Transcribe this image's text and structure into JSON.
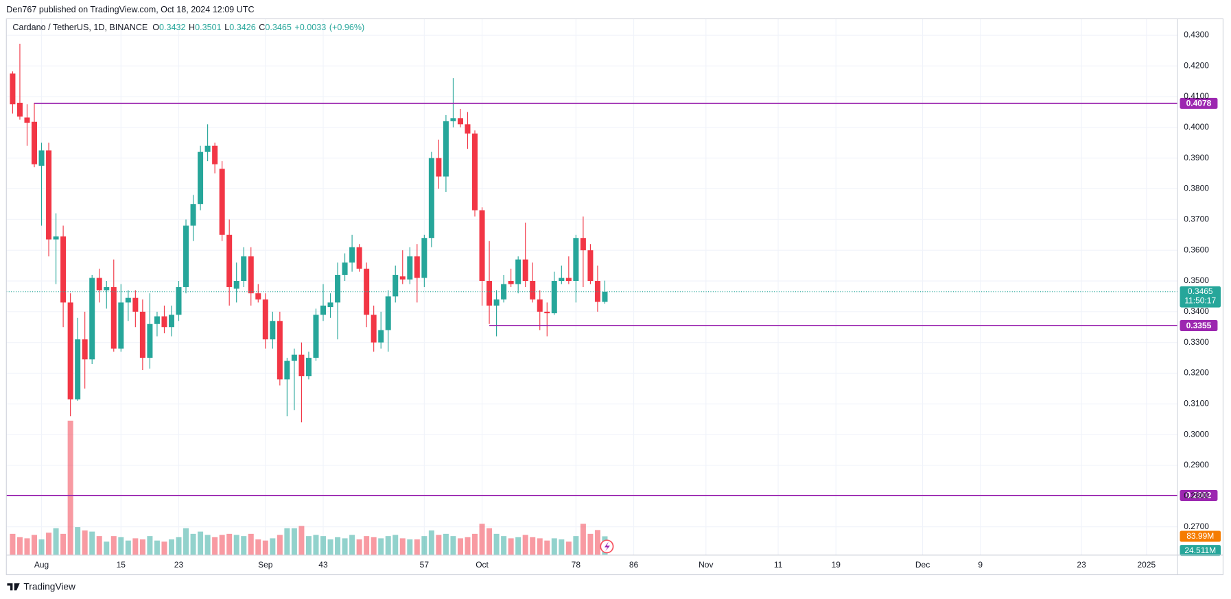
{
  "header": {
    "published": "Den767 published on TradingView.com, Oct 18, 2024 12:09 UTC"
  },
  "footer": {
    "brand": "TradingView"
  },
  "chart_data": {
    "type": "candlestick",
    "symbol": "Cardano / TetherUS, 1D, BINANCE",
    "legend_ohlc": [
      {
        "name": "O",
        "value": 0.3432
      },
      {
        "name": "H",
        "value": 0.3501
      },
      {
        "name": "L",
        "value": 0.3426
      },
      {
        "name": "C",
        "value": 0.3465
      }
    ],
    "change": "+0.0033",
    "change_pct": "(+0.96%)",
    "x": [
      0,
      1,
      2,
      3,
      4,
      5,
      6,
      7,
      8,
      9,
      10,
      11,
      12,
      13,
      14,
      15,
      16,
      17,
      18,
      19,
      20,
      21,
      22,
      23,
      24,
      25,
      26,
      27,
      28,
      29,
      30,
      31,
      32,
      33,
      34,
      35,
      36,
      37,
      38,
      39,
      40,
      41,
      42,
      43,
      44,
      45,
      46,
      47,
      48,
      49,
      50,
      51,
      52,
      53,
      54,
      55,
      56,
      57,
      58,
      59,
      60,
      61,
      62,
      63,
      64,
      65,
      66,
      67,
      68,
      69,
      70,
      71,
      72,
      73,
      74,
      75,
      76,
      77,
      78,
      79,
      80,
      81,
      82
    ],
    "open": [
      0.4175,
      0.408,
      0.4032,
      0.4018,
      0.3875,
      0.3925,
      0.3635,
      0.3645,
      0.343,
      0.3115,
      0.331,
      0.3245,
      0.351,
      0.347,
      0.348,
      0.328,
      0.343,
      0.3445,
      0.34,
      0.325,
      0.336,
      0.3385,
      0.335,
      0.339,
      0.348,
      0.368,
      0.375,
      0.392,
      0.394,
      0.3865,
      0.365,
      0.3475,
      0.35,
      0.358,
      0.346,
      0.344,
      0.331,
      0.337,
      0.318,
      0.324,
      0.326,
      0.319,
      0.325,
      0.339,
      0.3415,
      0.343,
      0.352,
      0.356,
      0.361,
      0.354,
      0.339,
      0.33,
      0.334,
      0.345,
      0.3515,
      0.3505,
      0.358,
      0.351,
      0.364,
      0.39,
      0.384,
      0.402,
      0.403,
      0.401,
      0.398,
      0.373,
      0.35,
      0.342,
      0.344,
      0.35,
      0.349,
      0.357,
      0.35,
      0.344,
      0.34,
      0.3395,
      0.35,
      0.351,
      0.35,
      0.364,
      0.36,
      0.35,
      0.3432
    ],
    "high": [
      0.4182,
      0.4272,
      0.4075,
      0.408,
      0.395,
      0.395,
      0.372,
      0.368,
      0.346,
      0.338,
      0.34,
      0.352,
      0.354,
      0.35,
      0.357,
      0.349,
      0.347,
      0.347,
      0.344,
      0.346,
      0.34,
      0.342,
      0.342,
      0.35,
      0.37,
      0.378,
      0.394,
      0.401,
      0.395,
      0.389,
      0.37,
      0.356,
      0.361,
      0.361,
      0.349,
      0.346,
      0.34,
      0.34,
      0.325,
      0.328,
      0.33,
      0.327,
      0.341,
      0.349,
      0.346,
      0.356,
      0.359,
      0.365,
      0.362,
      0.356,
      0.342,
      0.34,
      0.347,
      0.355,
      0.36,
      0.361,
      0.362,
      0.365,
      0.392,
      0.396,
      0.404,
      0.416,
      0.406,
      0.405,
      0.399,
      0.374,
      0.363,
      0.347,
      0.352,
      0.354,
      0.358,
      0.369,
      0.356,
      0.347,
      0.343,
      0.353,
      0.355,
      0.358,
      0.365,
      0.371,
      0.362,
      0.355,
      0.3501
    ],
    "low": [
      0.4045,
      0.4025,
      0.394,
      0.387,
      0.368,
      0.358,
      0.349,
      0.335,
      0.306,
      0.311,
      0.315,
      0.323,
      0.343,
      0.341,
      0.327,
      0.327,
      0.337,
      0.335,
      0.321,
      0.3215,
      0.332,
      0.333,
      0.332,
      0.337,
      0.346,
      0.363,
      0.373,
      0.389,
      0.385,
      0.363,
      0.342,
      0.343,
      0.348,
      0.342,
      0.343,
      0.328,
      0.328,
      0.316,
      0.306,
      0.308,
      0.304,
      0.318,
      0.324,
      0.337,
      0.338,
      0.331,
      0.35,
      0.353,
      0.353,
      0.335,
      0.327,
      0.328,
      0.327,
      0.343,
      0.349,
      0.349,
      0.343,
      0.348,
      0.361,
      0.38,
      0.379,
      0.4,
      0.4,
      0.393,
      0.371,
      0.342,
      0.336,
      0.332,
      0.343,
      0.348,
      0.346,
      0.348,
      0.343,
      0.334,
      0.332,
      0.339,
      0.349,
      0.349,
      0.343,
      0.348,
      0.349,
      0.34,
      0.3426
    ],
    "close": [
      0.4075,
      0.4035,
      0.4015,
      0.388,
      0.3925,
      0.3635,
      0.3645,
      0.343,
      0.3115,
      0.331,
      0.3245,
      0.351,
      0.347,
      0.348,
      0.328,
      0.343,
      0.3445,
      0.34,
      0.325,
      0.336,
      0.3385,
      0.335,
      0.339,
      0.348,
      0.368,
      0.375,
      0.392,
      0.394,
      0.388,
      0.365,
      0.348,
      0.35,
      0.358,
      0.346,
      0.344,
      0.331,
      0.337,
      0.318,
      0.324,
      0.326,
      0.319,
      0.325,
      0.339,
      0.342,
      0.343,
      0.352,
      0.356,
      0.361,
      0.354,
      0.339,
      0.33,
      0.334,
      0.345,
      0.352,
      0.3505,
      0.358,
      0.351,
      0.364,
      0.39,
      0.384,
      0.402,
      0.403,
      0.401,
      0.398,
      0.373,
      0.35,
      0.342,
      0.344,
      0.349,
      0.349,
      0.357,
      0.35,
      0.344,
      0.34,
      0.3395,
      0.35,
      0.351,
      0.35,
      0.364,
      0.36,
      0.35,
      0.3432,
      0.3465
    ],
    "volume": {
      "values": [
        95,
        80,
        75,
        90,
        70,
        100,
        120,
        95,
        600,
        125,
        110,
        105,
        85,
        60,
        85,
        80,
        65,
        75,
        70,
        85,
        65,
        60,
        70,
        80,
        120,
        95,
        105,
        90,
        80,
        90,
        95,
        90,
        85,
        95,
        70,
        65,
        75,
        90,
        120,
        120,
        130,
        85,
        90,
        85,
        70,
        80,
        75,
        90,
        70,
        85,
        80,
        75,
        85,
        90,
        75,
        70,
        70,
        85,
        110,
        90,
        95,
        85,
        75,
        80,
        95,
        140,
        120,
        95,
        85,
        75,
        80,
        90,
        80,
        75,
        65,
        75,
        70,
        60,
        85,
        140,
        95,
        112,
        83.99
      ],
      "lim": [
        0,
        2450
      ]
    },
    "xlim": [
      -0.87,
      161.3
    ],
    "xticks": [
      {
        "value": 4,
        "label": "Aug"
      },
      15,
      23,
      {
        "value": 35,
        "label": "Sep"
      },
      43,
      57,
      {
        "value": 65,
        "label": "Oct"
      },
      78,
      86,
      {
        "value": 96,
        "label": "Nov"
      },
      {
        "value": 106,
        "label": "11"
      },
      {
        "value": 114,
        "label": "19"
      },
      {
        "value": 126,
        "label": "Dec"
      },
      {
        "value": 134,
        "label": "9"
      },
      {
        "value": 148,
        "label": "23"
      },
      {
        "value": 157,
        "label": "2025"
      }
    ],
    "ylim": [
      0.2608,
      0.4394
    ],
    "yticks": [
      {
        "value": 0.27,
        "label": "0.2700"
      },
      {
        "value": 0.28,
        "label": "0.2800"
      },
      {
        "value": 0.29,
        "label": "0.2900"
      },
      {
        "value": 0.3,
        "label": "0.3000"
      },
      {
        "value": 0.31,
        "label": "0.3100"
      },
      {
        "value": 0.32,
        "label": "0.3200"
      },
      {
        "value": 0.33,
        "label": "0.3300"
      },
      {
        "value": 0.34,
        "label": "0.3400"
      },
      {
        "value": 0.35,
        "label": "0.3500"
      },
      {
        "value": 0.36,
        "label": "0.3600"
      },
      {
        "value": 0.37,
        "label": "0.3700"
      },
      {
        "value": 0.38,
        "label": "0.3800"
      },
      {
        "value": 0.39,
        "label": "0.3900"
      },
      {
        "value": 0.4,
        "label": "0.4000"
      },
      {
        "value": 0.41,
        "label": "0.4100"
      },
      {
        "value": 0.42,
        "label": "0.4200"
      },
      {
        "value": 0.43,
        "label": "0.4300"
      }
    ],
    "up_color": "#26a69a",
    "down_color": "#f23645",
    "grid": true,
    "levels": [
      {
        "value": 0.4078,
        "x_start": 3,
        "color": "#9c27b0"
      },
      {
        "value": 0.3355,
        "x_start": 66,
        "color": "#9c27b0"
      },
      {
        "value": 0.2802,
        "color": "#9c27b0"
      }
    ],
    "last_price": {
      "value": 0.3465,
      "countdown": "11:50:17"
    },
    "volume_labels": [
      {
        "label": "83.99M",
        "color": "#f57c00"
      },
      {
        "label": "24.511M",
        "color": "#26a69a"
      }
    ]
  }
}
